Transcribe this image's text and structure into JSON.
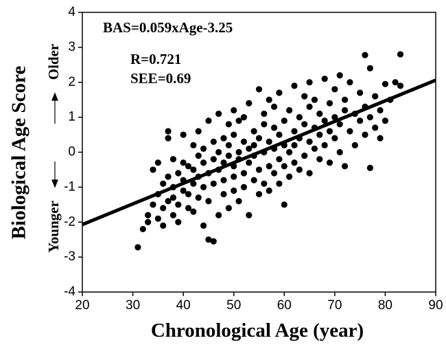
{
  "chart_data": {
    "type": "scatter",
    "x_label": "Chronological Age (year)",
    "y_label": "Biological Age Score",
    "annotations": [
      "BAS=0.059xAge-3.25",
      "R=0.721",
      "SEE=0.69"
    ],
    "direction_labels": {
      "up": "Older",
      "down": "Younger"
    },
    "xlim": [
      20,
      90
    ],
    "ylim": [
      -4,
      4
    ],
    "xticks": [
      20,
      30,
      40,
      50,
      60,
      70,
      80,
      90
    ],
    "yticks": [
      -4,
      -3,
      -2,
      -1,
      0,
      1,
      2,
      3,
      4
    ],
    "color": "#000000",
    "x": [
      31,
      32,
      33,
      33,
      34,
      34,
      35,
      35,
      35,
      36,
      36,
      36,
      37,
      37,
      37,
      37,
      38,
      38,
      38,
      38,
      39,
      39,
      39,
      40,
      40,
      40,
      40,
      41,
      41,
      41,
      42,
      42,
      42,
      42,
      43,
      43,
      43,
      43,
      44,
      44,
      44,
      44,
      45,
      45,
      45,
      45,
      46,
      46,
      46,
      46,
      47,
      47,
      47,
      47,
      48,
      48,
      48,
      48,
      49,
      49,
      49,
      49,
      50,
      50,
      50,
      50,
      50,
      51,
      51,
      51,
      51,
      52,
      52,
      52,
      52,
      53,
      53,
      53,
      53,
      54,
      54,
      54,
      54,
      55,
      55,
      55,
      55,
      56,
      56,
      56,
      56,
      57,
      57,
      57,
      57,
      58,
      58,
      58,
      58,
      59,
      59,
      59,
      59,
      60,
      60,
      60,
      60,
      61,
      61,
      61,
      62,
      62,
      62,
      62,
      63,
      63,
      63,
      64,
      64,
      64,
      65,
      65,
      65,
      65,
      66,
      66,
      66,
      67,
      67,
      67,
      68,
      68,
      68,
      69,
      69,
      69,
      70,
      70,
      70,
      71,
      71,
      71,
      72,
      72,
      72,
      73,
      73,
      74,
      74,
      75,
      75,
      76,
      76,
      76,
      77,
      77,
      77,
      78,
      78,
      79,
      79,
      80,
      80,
      81,
      82,
      83,
      83
    ],
    "y": [
      -2.72,
      -2.2,
      -1.8,
      -2.0,
      -1.5,
      -0.5,
      -1.9,
      -1.2,
      -0.3,
      -2.1,
      -1.6,
      -0.9,
      0.6,
      -1.4,
      -0.7,
      0.4,
      -1.8,
      -1.0,
      -0.2,
      -1.3,
      -0.6,
      -1.5,
      -2.0,
      -0.3,
      -1.1,
      -0.8,
      0.5,
      -1.6,
      -0.4,
      -1.2,
      -0.9,
      0.2,
      -1.7,
      -0.5,
      -0.1,
      -1.3,
      -0.7,
      0.6,
      -2.1,
      -0.3,
      -1.0,
      0.1,
      -2.5,
      -0.6,
      0.9,
      -1.4,
      -2.55,
      -0.2,
      0.3,
      -0.9,
      -1.8,
      0.0,
      -0.5,
      1.1,
      -1.2,
      0.4,
      -0.3,
      -0.8,
      0.8,
      -1.6,
      -0.1,
      0.2,
      1.2,
      -0.4,
      -1.1,
      0.5,
      -0.7,
      0.0,
      -1.4,
      0.9,
      -0.2,
      1.0,
      -0.6,
      0.3,
      -1.0,
      0.1,
      -0.3,
      1.4,
      -1.8,
      0.6,
      -0.8,
      0.2,
      -0.1,
      1.8,
      0.4,
      -0.5,
      -1.2,
      0.8,
      0.0,
      -0.9,
      1.1,
      0.3,
      -0.4,
      1.5,
      -1.1,
      0.7,
      0.1,
      -0.6,
      1.3,
      -0.2,
      0.5,
      1.7,
      -0.9,
      -1.5,
      0.9,
      0.2,
      -0.4,
      1.2,
      0.0,
      -0.7,
      1.9,
      0.6,
      0.2,
      -0.3,
      1.0,
      -0.5,
      0.4,
      1.6,
      0.8,
      -0.1,
      1.3,
      0.3,
      2.0,
      -0.6,
      0.7,
      0.1,
      1.5,
      1.1,
      0.5,
      -0.2,
      2.1,
      0.9,
      0.2,
      1.4,
      0.6,
      -0.3,
      1.8,
      0.4,
      1.0,
      2.2,
      0.8,
      0.0,
      1.5,
      1.2,
      -0.4,
      2.0,
      0.6,
      1.1,
      0.2,
      1.7,
      0.9,
      2.78,
      1.3,
      0.5,
      -0.45,
      2.4,
      1.0,
      1.6,
      0.7,
      1.2,
      0.4,
      1.95,
      0.9,
      1.5,
      2.0,
      2.8,
      1.9
    ],
    "trend": {
      "x": [
        20,
        90
      ],
      "y": [
        -2.07,
        2.06
      ]
    }
  }
}
